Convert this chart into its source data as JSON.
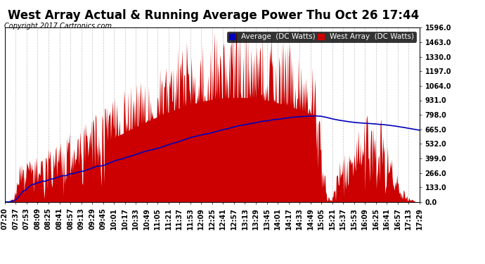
{
  "title": "West Array Actual & Running Average Power Thu Oct 26 17:44",
  "copyright": "Copyright 2017 Cartronics.com",
  "legend_labels": [
    "Average  (DC Watts)",
    "West Array  (DC Watts)"
  ],
  "legend_colors": [
    "#0000bb",
    "#cc0000"
  ],
  "yticks": [
    0.0,
    133.0,
    266.0,
    399.0,
    532.0,
    665.0,
    798.0,
    931.0,
    1064.0,
    1197.0,
    1330.0,
    1463.0,
    1596.0
  ],
  "ymax": 1596.0,
  "background_color": "#ffffff",
  "plot_bg_color": "#ffffff",
  "grid_color": "#aaaaaa",
  "bar_color": "#cc0000",
  "avg_line_color": "#0000bb",
  "xtick_labels": [
    "07:20",
    "07:37",
    "07:53",
    "08:09",
    "08:25",
    "08:41",
    "08:57",
    "09:13",
    "09:29",
    "09:45",
    "10:01",
    "10:17",
    "10:33",
    "10:49",
    "11:05",
    "11:21",
    "11:37",
    "11:53",
    "12:09",
    "12:25",
    "12:41",
    "12:57",
    "13:13",
    "13:29",
    "13:45",
    "14:01",
    "14:17",
    "14:33",
    "14:49",
    "15:05",
    "15:21",
    "15:37",
    "15:53",
    "16:09",
    "16:25",
    "16:41",
    "16:57",
    "17:13",
    "17:29"
  ],
  "title_fontsize": 12,
  "tick_fontsize": 7,
  "copyright_fontsize": 7,
  "legend_fontsize": 7.5
}
